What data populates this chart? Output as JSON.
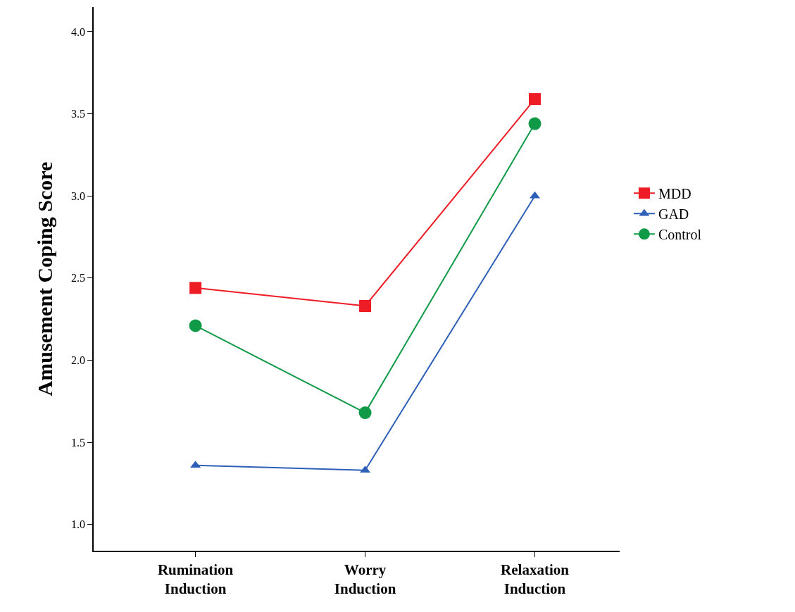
{
  "chart_data": {
    "type": "line",
    "ylabel": "Amusement Coping Score",
    "categories": [
      "Rumination Induction",
      "Worry Induction",
      "Relaxation Induction"
    ],
    "series": [
      {
        "name": "MDD",
        "color": "#ee1c25",
        "marker": "square",
        "values": [
          2.44,
          2.33,
          3.59
        ]
      },
      {
        "name": "GAD",
        "color": "#2e5fb8",
        "marker": "triangle",
        "values": [
          1.36,
          1.33,
          3.0
        ]
      },
      {
        "name": "Control",
        "color": "#109a48",
        "marker": "circle",
        "values": [
          2.21,
          1.68,
          3.44
        ]
      }
    ],
    "ylim": [
      0.84,
      4.15
    ],
    "yticks": [
      {
        "value": 1,
        "label": "1.0"
      },
      {
        "value": 1.5,
        "label": "1.5"
      },
      {
        "value": 2,
        "label": "2.0"
      },
      {
        "value": 2.5,
        "label": "2.5"
      },
      {
        "value": 3,
        "label": "3.0"
      },
      {
        "value": 3.5,
        "label": "3.5"
      },
      {
        "value": 4,
        "label": "4.0"
      }
    ],
    "grid": false,
    "legend": "right",
    "line_style": "solid"
  }
}
